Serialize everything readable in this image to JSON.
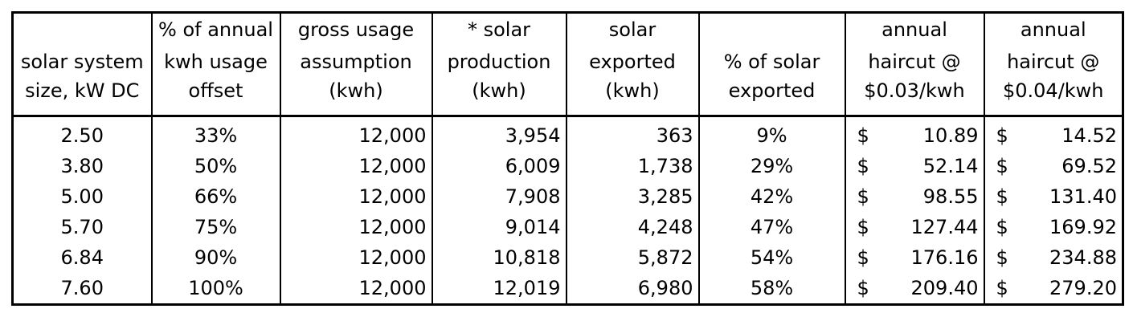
{
  "headers": [
    [
      "",
      "% of annual",
      "gross usage",
      "* solar",
      "solar",
      "",
      "annual",
      "annual"
    ],
    [
      "solar system",
      "kwh usage",
      "assumption",
      "production",
      "exported",
      "% of solar",
      "haircut @",
      "haircut @"
    ],
    [
      "size, kW DC",
      "offset",
      "(kwh)",
      "(kwh)",
      "(kwh)",
      "exported",
      "$0.03/kwh",
      "$0.04/kwh"
    ]
  ],
  "currency_symbol": "$",
  "rows": [
    {
      "size": "2.50",
      "offset": "33%",
      "gross": "12,000",
      "production": "3,954",
      "exported": "363",
      "pct_exported": "9%",
      "haircut_03": "10.89",
      "haircut_04": "14.52"
    },
    {
      "size": "3.80",
      "offset": "50%",
      "gross": "12,000",
      "production": "6,009",
      "exported": "1,738",
      "pct_exported": "29%",
      "haircut_03": "52.14",
      "haircut_04": "69.52"
    },
    {
      "size": "5.00",
      "offset": "66%",
      "gross": "12,000",
      "production": "7,908",
      "exported": "3,285",
      "pct_exported": "42%",
      "haircut_03": "98.55",
      "haircut_04": "131.40"
    },
    {
      "size": "5.70",
      "offset": "75%",
      "gross": "12,000",
      "production": "9,014",
      "exported": "4,248",
      "pct_exported": "47%",
      "haircut_03": "127.44",
      "haircut_04": "169.92"
    },
    {
      "size": "6.84",
      "offset": "90%",
      "gross": "12,000",
      "production": "10,818",
      "exported": "5,872",
      "pct_exported": "54%",
      "haircut_03": "176.16",
      "haircut_04": "234.88"
    },
    {
      "size": "7.60",
      "offset": "100%",
      "gross": "12,000",
      "production": "12,019",
      "exported": "6,980",
      "pct_exported": "58%",
      "haircut_03": "209.40",
      "haircut_04": "279.20"
    }
  ]
}
